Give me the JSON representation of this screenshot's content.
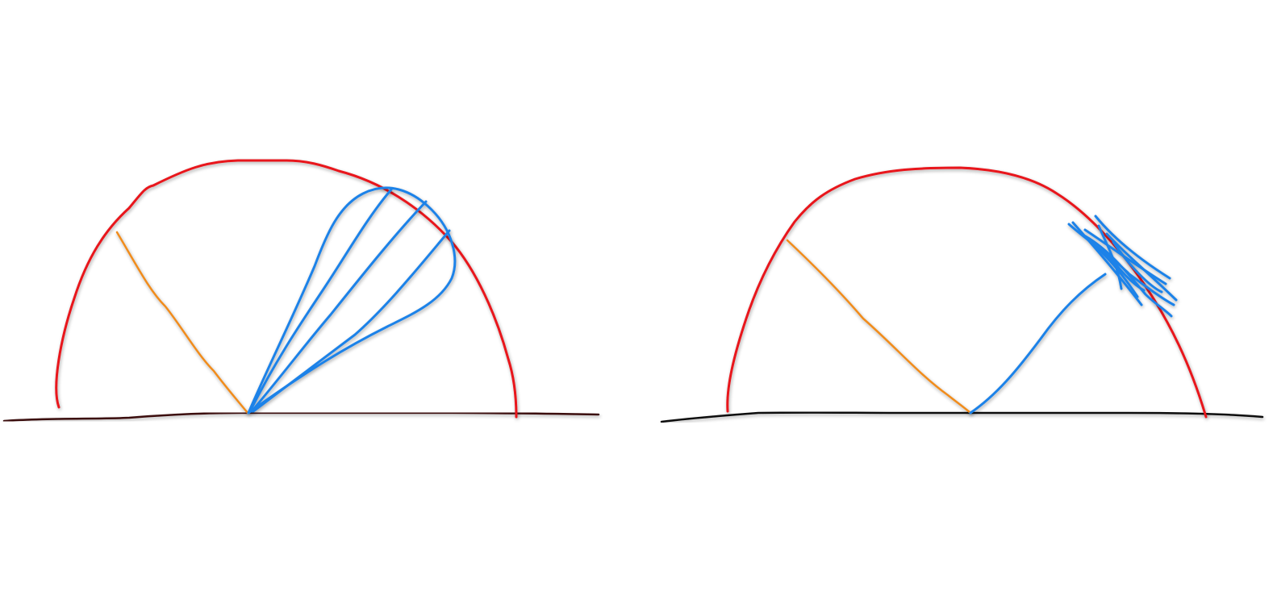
{
  "colors": {
    "background": "#ffffff",
    "hemisphere": "#e8141a",
    "incident_ray": "#f08c1e",
    "reflected_lobe": "#1f82e8",
    "surface_left": "#3a0f0f",
    "surface_right": "#111111"
  },
  "panels": [
    {
      "name": "left-panel",
      "components": [
        "surface-line",
        "hemisphere-outline",
        "incident-ray",
        "reflection-lobe"
      ]
    },
    {
      "name": "right-panel",
      "components": [
        "surface-line",
        "hemisphere-outline",
        "incident-ray",
        "reflected-ray",
        "scribble-cluster"
      ]
    }
  ]
}
